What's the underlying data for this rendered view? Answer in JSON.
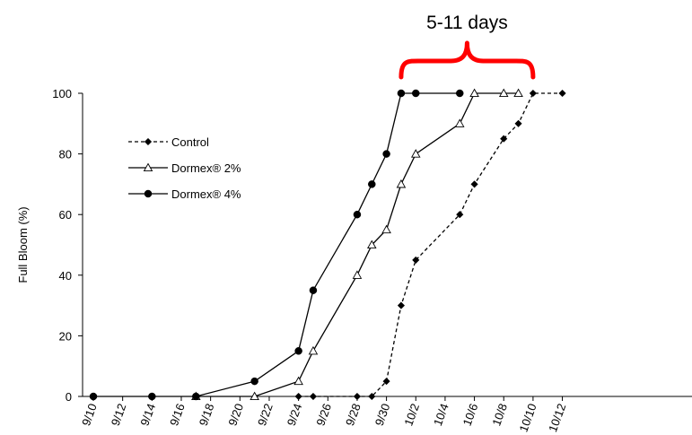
{
  "chart_data": {
    "type": "line",
    "title": "",
    "xlabel": "",
    "ylabel": "Full Bloom (%)",
    "ylim": [
      0,
      100
    ],
    "yticks": [
      0,
      20,
      40,
      60,
      80,
      100
    ],
    "x_tick_labels": [
      "9/10",
      "9/12",
      "9/14",
      "9/16",
      "9/18",
      "9/20",
      "9/22",
      "9/24",
      "9/26",
      "9/28",
      "9/30",
      "10/2",
      "10/4",
      "10/6",
      "10/8",
      "10/10",
      "10/12"
    ],
    "x_unit": "date (month/day)",
    "grid": false,
    "legend_position": "upper-left",
    "series": [
      {
        "name": "Control",
        "line_style": "dashed",
        "marker": "filled-diamond",
        "color": "#000000",
        "points": [
          {
            "x": "9/24",
            "y": 0
          },
          {
            "x": "9/25",
            "y": 0
          },
          {
            "x": "9/28",
            "y": 0
          },
          {
            "x": "9/29",
            "y": 0
          },
          {
            "x": "9/30",
            "y": 5
          },
          {
            "x": "10/1",
            "y": 30
          },
          {
            "x": "10/2",
            "y": 45
          },
          {
            "x": "10/5",
            "y": 60
          },
          {
            "x": "10/6",
            "y": 70
          },
          {
            "x": "10/8",
            "y": 85
          },
          {
            "x": "10/9",
            "y": 90
          },
          {
            "x": "10/10",
            "y": 100
          },
          {
            "x": "10/12",
            "y": 100
          }
        ]
      },
      {
        "name": "Dormex® 2%",
        "line_style": "solid",
        "marker": "open-triangle",
        "color": "#000000",
        "points": [
          {
            "x": "9/17",
            "y": 0
          },
          {
            "x": "9/21",
            "y": 0
          },
          {
            "x": "9/24",
            "y": 5
          },
          {
            "x": "9/25",
            "y": 15
          },
          {
            "x": "9/28",
            "y": 40
          },
          {
            "x": "9/29",
            "y": 50
          },
          {
            "x": "9/30",
            "y": 55
          },
          {
            "x": "10/1",
            "y": 70
          },
          {
            "x": "10/2",
            "y": 80
          },
          {
            "x": "10/5",
            "y": 90
          },
          {
            "x": "10/6",
            "y": 100
          },
          {
            "x": "10/8",
            "y": 100
          },
          {
            "x": "10/9",
            "y": 100
          }
        ]
      },
      {
        "name": "Dormex® 4%",
        "line_style": "solid",
        "marker": "filled-circle",
        "color": "#000000",
        "points": [
          {
            "x": "9/10",
            "y": 0
          },
          {
            "x": "9/14",
            "y": 0
          },
          {
            "x": "9/17",
            "y": 0
          },
          {
            "x": "9/21",
            "y": 5
          },
          {
            "x": "9/24",
            "y": 15
          },
          {
            "x": "9/25",
            "y": 35
          },
          {
            "x": "9/28",
            "y": 60
          },
          {
            "x": "9/29",
            "y": 70
          },
          {
            "x": "9/30",
            "y": 80
          },
          {
            "x": "10/1",
            "y": 100
          },
          {
            "x": "10/2",
            "y": 100
          },
          {
            "x": "10/5",
            "y": 100
          }
        ]
      }
    ],
    "annotations": [
      {
        "text": "5-11 days",
        "shape": "curly-brace",
        "color": "#ff0000",
        "from_x": "10/1",
        "to_x": "10/10"
      }
    ]
  }
}
